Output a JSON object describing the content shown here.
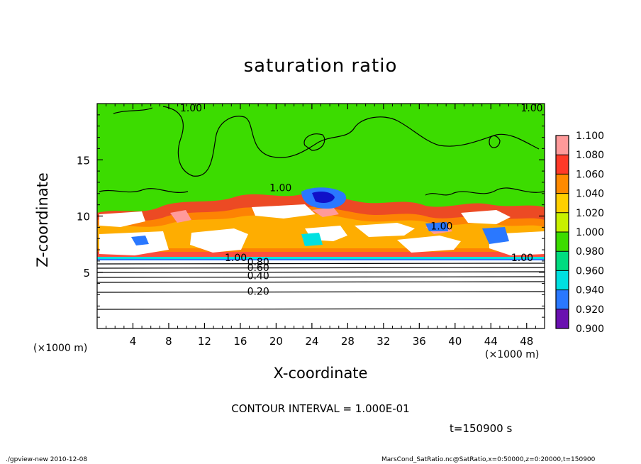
{
  "chart_data": {
    "type": "heatmap",
    "title": "saturation ratio",
    "xlabel": "X-coordinate",
    "ylabel": "Z-coordinate",
    "x_unit_left": "(×1000 m)",
    "x_unit_right": "(×1000 m)",
    "xlim": [
      0,
      50
    ],
    "ylim": [
      0,
      20
    ],
    "x_ticks": [
      4,
      8,
      12,
      16,
      20,
      24,
      28,
      32,
      36,
      40,
      44,
      48
    ],
    "y_ticks": [
      5,
      10,
      15
    ],
    "colorbar": {
      "labels": [
        "1.100",
        "1.080",
        "1.060",
        "1.040",
        "1.020",
        "1.000",
        "0.980",
        "0.960",
        "0.940",
        "0.920",
        "0.900"
      ],
      "values": [
        1.1,
        1.08,
        1.06,
        1.04,
        1.02,
        1.0,
        0.98,
        0.96,
        0.94,
        0.92,
        0.9
      ],
      "colors": [
        "#ff9a9a",
        "#ff3a28",
        "#ff8a00",
        "#ffd000",
        "#c8f000",
        "#3cdc00",
        "#00dc80",
        "#00e0e0",
        "#2a78ff",
        "#1010c8",
        "#6a10b0"
      ]
    },
    "contour_labels": [
      {
        "text": "1.00",
        "x": 10.5,
        "y": 19.3
      },
      {
        "text": "1.00",
        "x": 20.5,
        "y": 12.2
      },
      {
        "text": "1.00",
        "x": 50.0,
        "y": 19.3
      },
      {
        "text": "1.00",
        "x": 38.5,
        "y": 8.8
      },
      {
        "text": "1.00",
        "x": 15.5,
        "y": 6.0
      },
      {
        "text": "1.00",
        "x": 47.5,
        "y": 6.0
      },
      {
        "text": "0.80",
        "x": 18.0,
        "y": 5.6
      },
      {
        "text": "0.60",
        "x": 18.0,
        "y": 5.1
      },
      {
        "text": "0.40",
        "x": 18.0,
        "y": 4.4
      },
      {
        "text": "0.20",
        "x": 18.0,
        "y": 3.0
      }
    ]
  },
  "contour_interval": "CONTOUR INTERVAL = 1.000E-01",
  "time_label": "t=150900 s",
  "footer_left": "./gpview-new   2010-12-08",
  "footer_right": "MarsCond_SatRatio.nc@SatRatio,x=0:50000,z=0:20000,t=150900"
}
